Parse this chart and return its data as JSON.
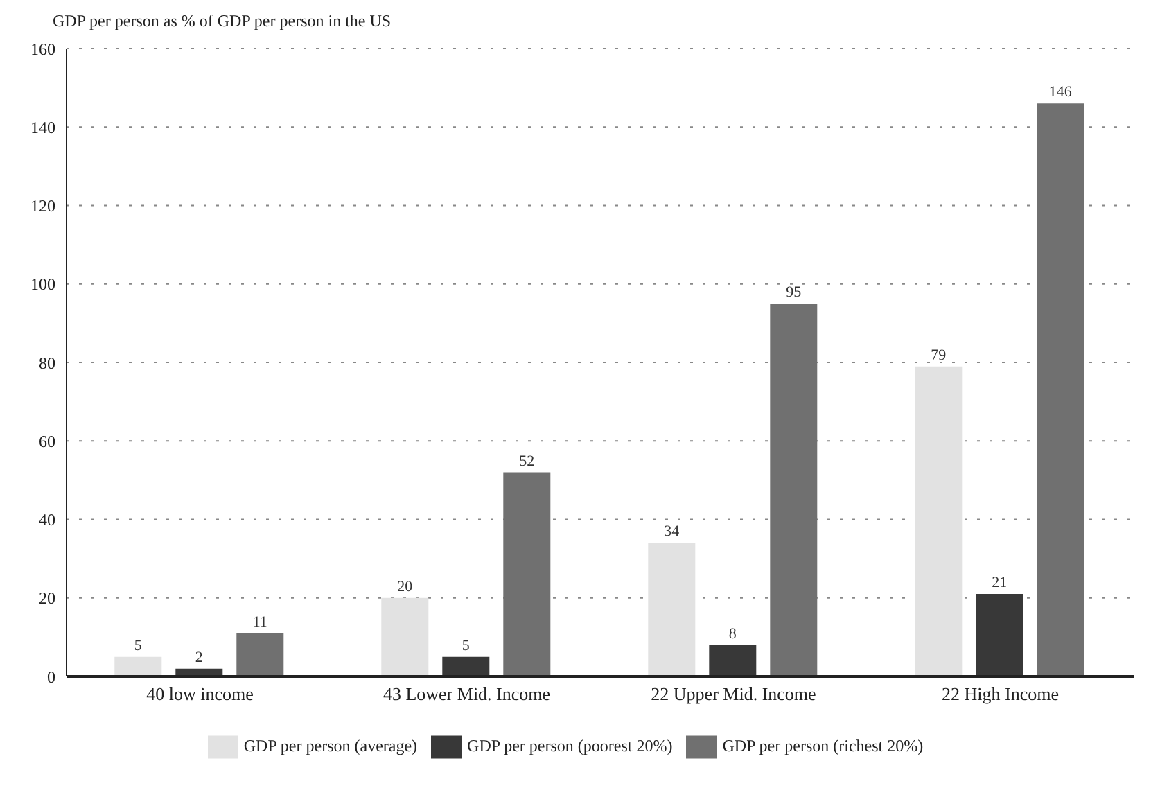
{
  "chart_data": {
    "type": "bar",
    "title": "GDP per person as % of GDP per person in the US",
    "categories": [
      "40 low income",
      "43 Lower Mid. Income",
      "22 Upper Mid. Income",
      "22 High Income"
    ],
    "series": [
      {
        "name": "GDP per person (average)",
        "color": "#e2e2e2",
        "values": [
          5,
          20,
          34,
          79
        ]
      },
      {
        "name": "GDP per person (poorest 20%)",
        "color": "#383838",
        "values": [
          2,
          5,
          8,
          21
        ]
      },
      {
        "name": "GDP per person (richest 20%)",
        "color": "#707070",
        "values": [
          11,
          52,
          95,
          146
        ]
      }
    ],
    "ylim": [
      0,
      160
    ],
    "yticks": [
      0,
      20,
      40,
      60,
      80,
      100,
      120,
      140,
      160
    ],
    "grid": "y",
    "legend": "bottom",
    "data_labels": true
  }
}
